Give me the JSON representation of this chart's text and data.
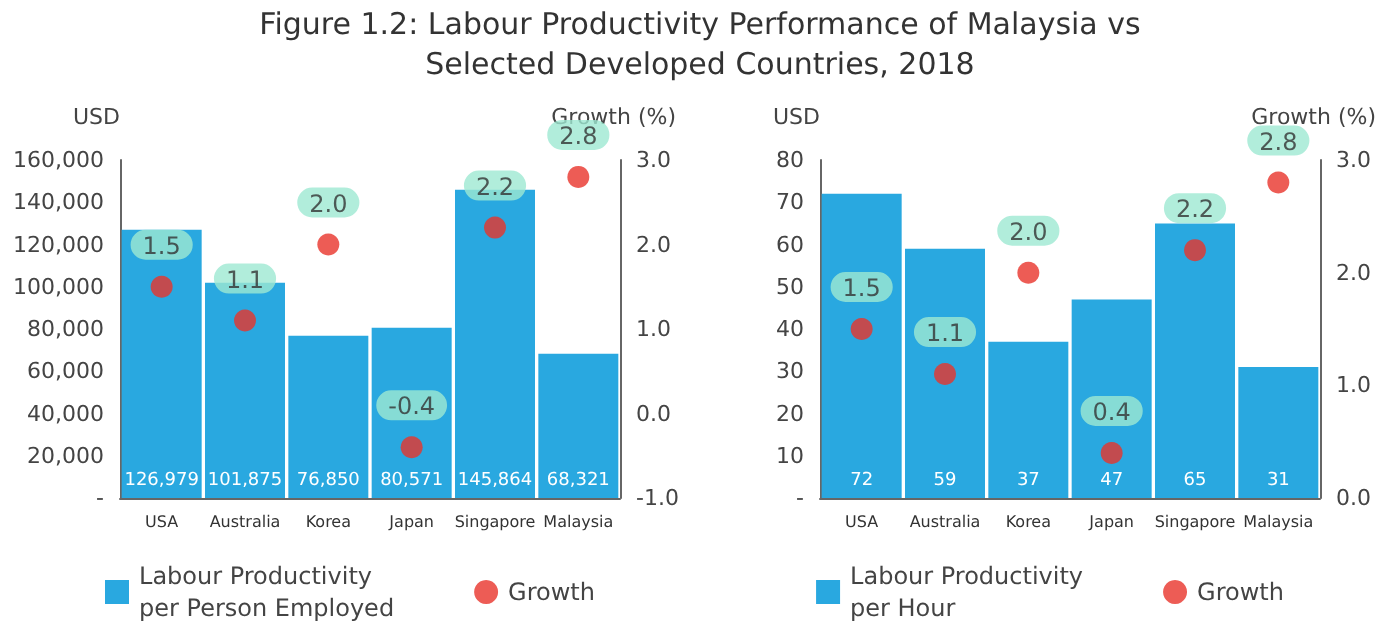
{
  "chart_data": [
    {
      "type": "bar",
      "title": "Figure 1.2: Labour Productivity Performance of Malaysia vs Selected Developed Countries, 2018",
      "ylabel": "USD",
      "y2label": "Growth (%)",
      "categories": [
        "USA",
        "Australia",
        "Korea",
        "Japan",
        "Singapore",
        "Malaysia"
      ],
      "series": [
        {
          "name": "Labour Productivity per Person Employed",
          "color": "#29a8e0",
          "values": [
            126979,
            101875,
            76850,
            80571,
            145864,
            68321
          ],
          "value_labels": [
            "126,979",
            "101,875",
            "76,850",
            "80,571",
            "145,864",
            "68,321"
          ]
        },
        {
          "name": "Growth",
          "type": "scatter",
          "axis": "y2",
          "color": "#e8332a",
          "values": [
            1.5,
            1.1,
            2.0,
            -0.4,
            2.2,
            2.8
          ],
          "value_labels": [
            "1.5",
            "1.1",
            "2.0",
            "-0.4",
            "2.2",
            "2.8"
          ]
        }
      ],
      "ylim": [
        0,
        160000
      ],
      "yticks": [
        {
          "value": 0,
          "label": "-"
        },
        {
          "value": 20000,
          "label": "20,000"
        },
        {
          "value": 40000,
          "label": "40,000"
        },
        {
          "value": 60000,
          "label": "60,000"
        },
        {
          "value": 80000,
          "label": "80,000"
        },
        {
          "value": 100000,
          "label": "100,000"
        },
        {
          "value": 120000,
          "label": "120,000"
        },
        {
          "value": 140000,
          "label": "140,000"
        },
        {
          "value": 160000,
          "label": "160,000"
        }
      ],
      "y2lim": [
        -1,
        3
      ],
      "y2ticks": [
        {
          "value": -1,
          "label": "-1.0"
        },
        {
          "value": 0,
          "label": "0.0"
        },
        {
          "value": 1,
          "label": "1.0"
        },
        {
          "value": 2,
          "label": "2.0"
        },
        {
          "value": 3,
          "label": "3.0"
        }
      ],
      "marker": "circle",
      "legend": "bottom"
    },
    {
      "type": "bar",
      "ylabel": "USD",
      "y2label": "Growth (%)",
      "categories": [
        "USA",
        "Australia",
        "Korea",
        "Japan",
        "Singapore",
        "Malaysia"
      ],
      "series": [
        {
          "name": "Labour Productivity per Hour",
          "color": "#29a8e0",
          "values": [
            72,
            59,
            37,
            47,
            65,
            31
          ],
          "value_labels": [
            "72",
            "59",
            "37",
            "47",
            "65",
            "31"
          ]
        },
        {
          "name": "Growth",
          "type": "scatter",
          "axis": "y2",
          "color": "#e8332a",
          "values": [
            1.5,
            1.1,
            2.0,
            0.4,
            2.2,
            2.8
          ],
          "value_labels": [
            "1.5",
            "1.1",
            "2.0",
            "0.4",
            "2.2",
            "2.8"
          ]
        }
      ],
      "ylim": [
        0,
        80
      ],
      "yticks": [
        {
          "value": 0,
          "label": "-"
        },
        10,
        20,
        30,
        40,
        50,
        60,
        70,
        80
      ],
      "y2lim": [
        0,
        3
      ],
      "y2ticks": [
        {
          "value": 0,
          "label": "0.0"
        },
        {
          "value": 1,
          "label": "1.0"
        },
        {
          "value": 2,
          "label": "2.0"
        },
        {
          "value": 3,
          "label": "3.0"
        }
      ],
      "marker": "circle",
      "legend": "bottom"
    }
  ]
}
